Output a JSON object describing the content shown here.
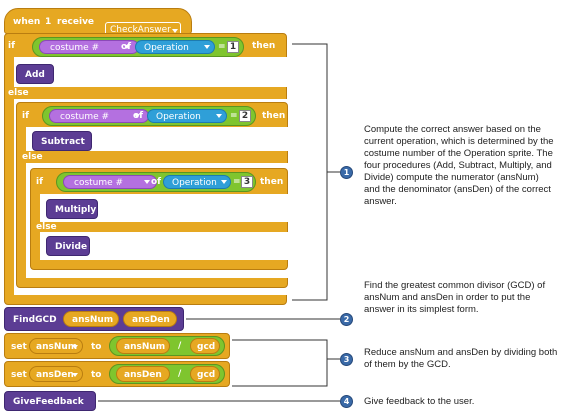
{
  "hat": {
    "when": "when",
    "key": "1",
    "receive": "receive",
    "message": "CheckAnswer"
  },
  "keywords": {
    "if": "if",
    "else": "else",
    "then": "then",
    "of": "of",
    "set": "set",
    "to": "to",
    "div": "/"
  },
  "conditions": [
    {
      "prop": "costume #",
      "sprite": "Operation",
      "value": "1"
    },
    {
      "prop": "costume #",
      "sprite": "Operation",
      "value": "2"
    },
    {
      "prop": "costume #",
      "sprite": "Operation",
      "value": "3"
    }
  ],
  "procedures": {
    "add": "Add",
    "subtract": "Subtract",
    "multiply": "Multiply",
    "divide": "Divide",
    "gcd": "FindGCD",
    "feedback": "GiveFeedback"
  },
  "gcd_args": [
    "ansNum",
    "ansDen"
  ],
  "set_blocks": [
    {
      "var": "ansNum",
      "left": "ansNum",
      "right": "gcd"
    },
    {
      "var": "ansDen",
      "left": "ansDen",
      "right": "gcd"
    }
  ],
  "notes": [
    {
      "badge": "1",
      "text": "Compute the correct answer based on the current operation, which is determined by the costume number of the Operation sprite. The four procedures (Add, Subtract, Multiply, and Divide) compute the numerator (ansNum) and the denominator (ansDen) of the correct answer."
    },
    {
      "badge": "2",
      "text": "Find the greatest common divisor (GCD) of ansNum and ansDen in order to put the answer in its simplest form."
    },
    {
      "badge": "3",
      "text": "Reduce ansNum and ansDen by dividing both of them by the GCD."
    },
    {
      "badge": "4",
      "text": "Give feedback to the user."
    }
  ],
  "colors": {
    "control": "#e6a822",
    "operator": "#7fc52e",
    "sensing": "#2f9fd8",
    "looks": "#b470e0",
    "procedure": "#5c3d94",
    "badge": "#3a6aa8"
  }
}
